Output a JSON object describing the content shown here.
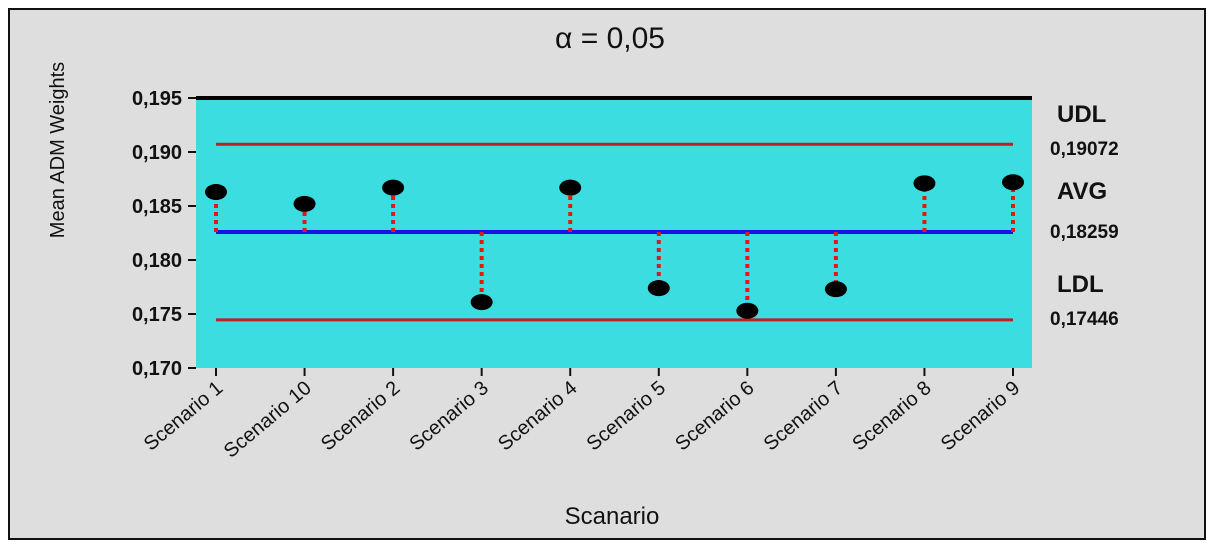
{
  "chart_data": {
    "type": "scatter",
    "title": "α = 0,05",
    "xlabel": "Scanario",
    "ylabel": "Mean ADM Weights",
    "ylim": [
      0.17,
      0.195
    ],
    "y_ticks": [
      "0,195",
      "0,190",
      "0,185",
      "0,180",
      "0,175",
      "0,170"
    ],
    "categories": [
      "Scenario 1",
      "Scenario 10",
      "Scenario 2",
      "Scenario 3",
      "Scenario 4",
      "Scenario 5",
      "Scenario 6",
      "Scenario 7",
      "Scenario 8",
      "Scenario 9"
    ],
    "values": [
      0.1863,
      0.1852,
      0.1867,
      0.1761,
      0.1867,
      0.1774,
      0.1753,
      0.1773,
      0.1871,
      0.1872
    ],
    "limits": {
      "udl": {
        "label": "UDL",
        "value": 0.19072,
        "text": "0,19072",
        "color": "#c0201c"
      },
      "avg": {
        "label": "AVG",
        "value": 0.18259,
        "text": "0,18259",
        "color": "#1414e6"
      },
      "ldl": {
        "label": "LDL",
        "value": 0.17446,
        "text": "0,17446",
        "color": "#c0201c"
      }
    },
    "colors": {
      "plot_bg": "#3cdde0",
      "point": "#000000",
      "drop_line": "#e01818"
    },
    "grid": false
  }
}
